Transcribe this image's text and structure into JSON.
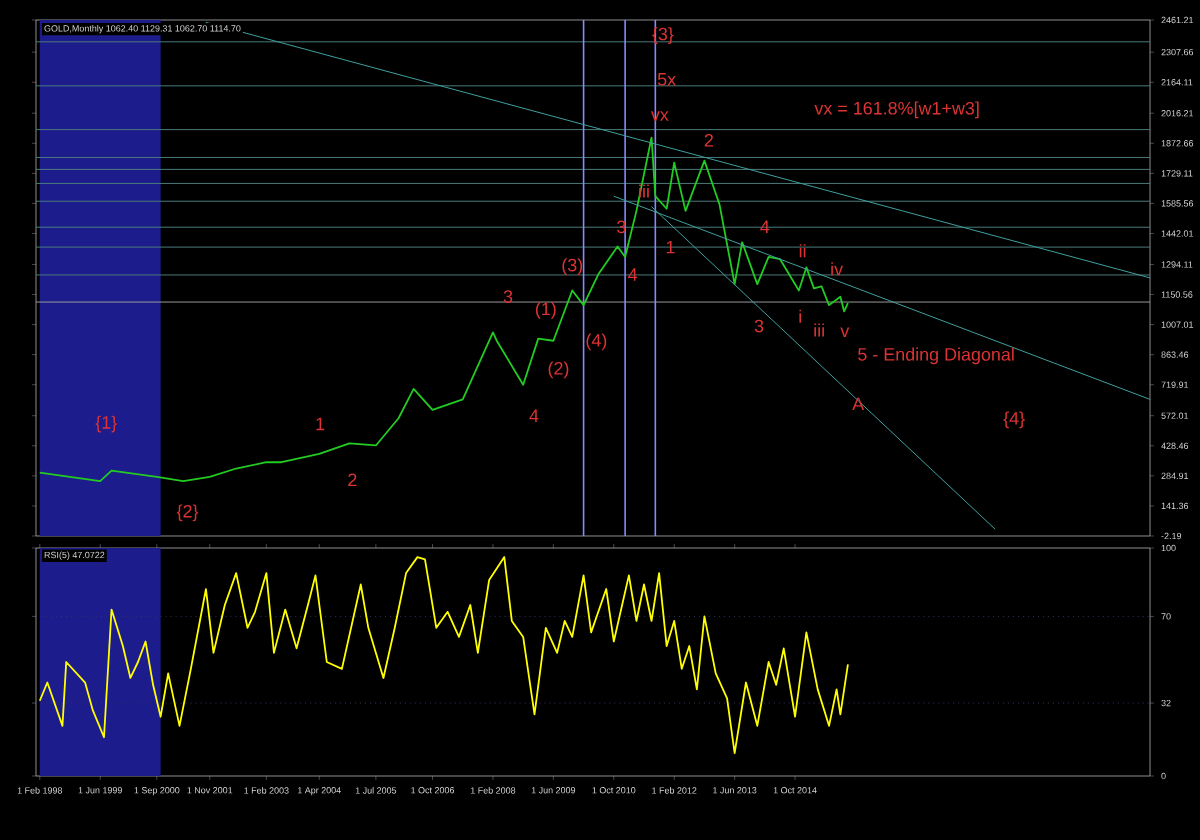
{
  "chart_data": [
    {
      "type": "line",
      "title": "GOLD,Monthly 1062.40 1129.31 1062.70 1114.70",
      "xlim": [
        "1998-01",
        "2022-08"
      ],
      "ylim": [
        -2.19,
        2461.21
      ],
      "yticks": [
        -2.19,
        141.36,
        284.91,
        428.46,
        572.01,
        719.91,
        863.46,
        1007.01,
        1150.56,
        1294.11,
        1442.01,
        1585.56,
        1729.11,
        1872.66,
        2016.21,
        2164.11,
        2307.66,
        2461.21
      ],
      "tick_labels": "y",
      "series": [
        {
          "color": "#22cc22",
          "x": [
            "1998-02",
            "1999-06",
            "1999-09",
            "2000-09",
            "2001-04",
            "2001-11",
            "2002-06",
            "2003-02",
            "2003-06",
            "2004-04",
            "2004-12",
            "2005-07",
            "2006-01",
            "2006-05",
            "2006-10",
            "2007-06",
            "2008-02",
            "2008-03",
            "2008-10",
            "2009-02",
            "2009-06",
            "2009-11",
            "2010-02",
            "2010-06",
            "2010-11",
            "2011-01",
            "2011-04",
            "2011-08",
            "2011-09",
            "2011-12",
            "2012-02",
            "2012-05",
            "2012-10",
            "2013-02",
            "2013-06",
            "2013-08",
            "2013-12",
            "2014-03",
            "2014-06",
            "2014-11",
            "2015-01",
            "2015-03",
            "2015-05",
            "2015-07",
            "2015-10",
            "2015-11",
            "2015-12"
          ],
          "values": [
            300,
            260,
            310,
            280,
            260,
            280,
            320,
            350,
            350,
            390,
            440,
            430,
            560,
            700,
            600,
            650,
            970,
            930,
            720,
            940,
            930,
            1170,
            1100,
            1250,
            1380,
            1330,
            1550,
            1900,
            1620,
            1560,
            1780,
            1550,
            1790,
            1580,
            1200,
            1400,
            1200,
            1330,
            1320,
            1170,
            1280,
            1180,
            1190,
            1100,
            1140,
            1070,
            1110
          ]
        },
        {
          "type": "line",
          "color": "#40a0a0",
          "x": [
            "2001-10",
            "2022-08"
          ],
          "values": [
            2450,
            1230
          ]
        },
        {
          "type": "line",
          "color": "#40a0a0",
          "x": [
            "2010-10",
            "2022-08"
          ],
          "values": [
            1620,
            650
          ]
        },
        {
          "type": "line",
          "color": "#40a0a0",
          "x": [
            "2011-08",
            "2019-03"
          ],
          "values": [
            1570,
            30
          ]
        }
      ],
      "bands": [
        {
          "axis": "x",
          "from": "1998-02",
          "to": "2000-10",
          "color": "#1c1c8c"
        }
      ],
      "ref_lines": [
        {
          "axis": "y",
          "value": 2357,
          "color": "#4a7a7a"
        },
        {
          "axis": "y",
          "value": 2147,
          "color": "#4a7a7a"
        },
        {
          "axis": "y",
          "value": 1938,
          "color": "#4a7a7a"
        },
        {
          "axis": "y",
          "value": 1805,
          "color": "#4a7a7a"
        },
        {
          "axis": "y",
          "value": 1748,
          "color": "#4a7a7a"
        },
        {
          "axis": "y",
          "value": 1681,
          "color": "#4a7a7a"
        },
        {
          "axis": "y",
          "value": 1596,
          "color": "#4a7a7a"
        },
        {
          "axis": "y",
          "value": 1472,
          "color": "#4a7a7a"
        },
        {
          "axis": "y",
          "value": 1377,
          "color": "#4a7a7a"
        },
        {
          "axis": "y",
          "value": 1244,
          "color": "#4a7a7a"
        },
        {
          "axis": "y",
          "value": 1114.7,
          "color": "#999999"
        },
        {
          "axis": "x",
          "value": "2010-02",
          "color": "#8888ff"
        },
        {
          "axis": "x",
          "value": "2011-01",
          "color": "#8888ff"
        },
        {
          "axis": "x",
          "value": "2011-09",
          "color": "#8888ff"
        }
      ],
      "annotations": [
        "{1}",
        "{2}",
        "1",
        "2",
        {
          "text": "3",
          "x": "2008-06",
          "y": 1141
        },
        "4",
        {
          "text": "(1)",
          "x": "2009-04",
          "y": 1075
        },
        "(2)",
        {
          "text": "(3)",
          "x": "2009-11",
          "y": 1284
        },
        "(4)",
        {
          "text": "3",
          "x": "2010-12",
          "y": 1474
        },
        {
          "text": "4",
          "x": "2011-03",
          "y": 1246
        },
        {
          "text": "iii",
          "x": "2011-06",
          "y": 1645
        },
        {
          "text": "1",
          "x": "2012-01",
          "y": 1377
        },
        "vx",
        {
          "text": "5x",
          "x": "2011-12",
          "y": 2178
        },
        {
          "text": "{3}",
          "x": "2011-11",
          "y": 2387
        },
        "2",
        {
          "text": "4",
          "x": "2014-02",
          "y": 1474
        },
        "3",
        "i",
        {
          "text": "ii",
          "x": "2014-12",
          "y": 1360
        },
        "iii",
        {
          "text": "iv",
          "x": "2015-09",
          "y": 1274
        },
        "v",
        "5 - Ending Diagonal",
        "A",
        "{4}",
        "vx = 161.8%[w1+w3]"
      ]
    },
    {
      "type": "line",
      "title": "RSI(5) 47.0722",
      "xlim": [
        "1998-01",
        "2022-08"
      ],
      "ylim": [
        0,
        100
      ],
      "yticks": [
        0,
        32,
        70,
        100
      ],
      "xticks": [
        {
          "value": "1998-02-01",
          "label": "1 Feb 1998"
        },
        {
          "value": "1999-06-01",
          "label": "1 Jun 1999"
        },
        {
          "value": "2000-09-01",
          "label": "1 Sep 2000"
        },
        {
          "value": "2001-11-01",
          "label": "1 Nov 2001"
        },
        {
          "value": "2003-02-01",
          "label": "1 Feb 2003"
        },
        {
          "value": "2004-04-01",
          "label": "1 Apr 2004"
        },
        {
          "value": "2005-07-01",
          "label": "1 Jul 2005"
        },
        {
          "value": "2006-10-01",
          "label": "1 Oct 2006"
        },
        {
          "value": "2008-02-01",
          "label": "1 Feb 2008"
        },
        {
          "value": "2009-06-01",
          "label": "1 Jun 2009"
        },
        {
          "value": "2010-10-01",
          "label": "1 Oct 2010"
        },
        {
          "value": "2012-02-01",
          "label": "1 Feb 2012"
        },
        {
          "value": "2013-06-01",
          "label": "1 Jun 2013"
        },
        {
          "value": "2014-10-01",
          "label": "1 Oct 2014"
        }
      ],
      "series": [
        {
          "color": "#ffff00",
          "x": [
            "1998-02",
            "1998-04",
            "1998-08",
            "1998-09",
            "1999-02",
            "1999-04",
            "1999-07",
            "1999-09",
            "1999-12",
            "2000-02",
            "2000-04",
            "2000-06",
            "2000-08",
            "2000-10",
            "2000-12",
            "2001-03",
            "2001-06",
            "2001-10",
            "2001-12",
            "2002-03",
            "2002-06",
            "2002-09",
            "2002-11",
            "2003-02",
            "2003-04",
            "2003-07",
            "2003-10",
            "2004-01",
            "2004-03",
            "2004-06",
            "2004-10",
            "2005-03",
            "2005-05",
            "2005-09",
            "2005-12",
            "2006-03",
            "2006-06",
            "2006-08",
            "2006-11",
            "2007-02",
            "2007-05",
            "2007-08",
            "2007-10",
            "2008-01",
            "2008-05",
            "2008-07",
            "2008-10",
            "2009-01",
            "2009-04",
            "2009-07",
            "2009-09",
            "2009-11",
            "2010-02",
            "2010-04",
            "2010-08",
            "2010-10",
            "2011-02",
            "2011-04",
            "2011-06",
            "2011-08",
            "2011-10",
            "2011-12",
            "2012-02",
            "2012-04",
            "2012-06",
            "2012-08",
            "2012-10",
            "2013-01",
            "2013-04",
            "2013-06",
            "2013-09",
            "2013-12",
            "2014-03",
            "2014-05",
            "2014-07",
            "2014-10",
            "2015-01",
            "2015-04",
            "2015-07",
            "2015-09",
            "2015-10",
            "2015-12"
          ],
          "values": [
            33,
            41,
            22,
            50,
            41,
            29,
            17,
            73,
            57,
            43,
            50,
            59,
            40,
            26,
            45,
            22,
            47,
            82,
            54,
            75,
            89,
            65,
            72,
            89,
            54,
            73,
            56,
            75,
            88,
            50,
            47,
            84,
            65,
            43,
            65,
            89,
            96,
            95,
            65,
            72,
            61,
            75,
            54,
            86,
            96,
            68,
            61,
            27,
            65,
            54,
            68,
            61,
            88,
            63,
            82,
            59,
            88,
            68,
            84,
            68,
            89,
            57,
            68,
            47,
            57,
            38,
            70,
            45,
            34,
            10,
            41,
            22,
            50,
            40,
            56,
            26,
            63,
            38,
            22,
            38,
            27,
            49
          ]
        }
      ],
      "bands": [
        {
          "axis": "x",
          "from": "1998-02",
          "to": "2000-10",
          "color": "#1c1c8c"
        }
      ],
      "ref_lines": [
        {
          "axis": "y",
          "value": 70,
          "color": "#333366",
          "line_style": "dotted"
        },
        {
          "axis": "y",
          "value": 32,
          "color": "#333366",
          "line_style": "dotted"
        }
      ]
    }
  ]
}
